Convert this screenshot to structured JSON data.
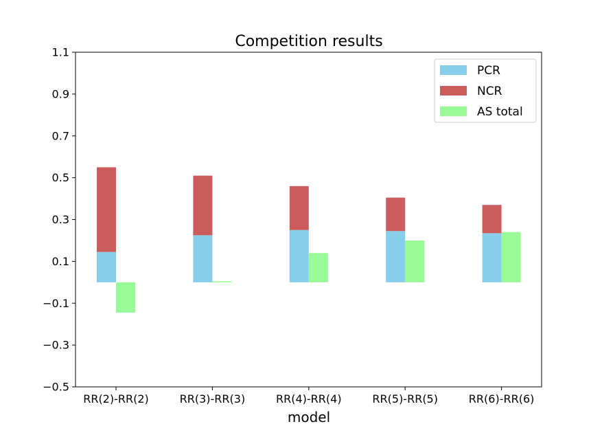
{
  "chart_data": {
    "type": "bar",
    "title": "Competition results",
    "xlabel": "model",
    "ylabel": "",
    "categories": [
      "RR(2)-RR(2)",
      "RR(3)-RR(3)",
      "RR(4)-RR(4)",
      "RR(5)-RR(5)",
      "RR(6)-RR(6)"
    ],
    "ylim": [
      -0.5,
      1.1
    ],
    "yticks": [
      -0.5,
      -0.3,
      -0.1,
      0.1,
      0.3,
      0.5,
      0.7,
      0.9,
      1.1
    ],
    "ytick_labels": [
      "−0.5",
      "−0.3",
      "−0.1",
      "0.1",
      "0.3",
      "0.5",
      "0.7",
      "0.9",
      "1.1"
    ],
    "stacked": true,
    "grid": false,
    "legend_position": "top-right",
    "series": [
      {
        "name": "PCR",
        "color": "#87ceeb",
        "values": [
          0.145,
          0.225,
          0.25,
          0.245,
          0.235
        ],
        "stack": "left"
      },
      {
        "name": "NCR",
        "color": "#cd5c5c",
        "values": [
          0.405,
          0.285,
          0.21,
          0.16,
          0.135
        ],
        "stack": "left"
      },
      {
        "name": "AS total",
        "color": "#98fb98",
        "values": [
          -0.145,
          0.005,
          0.14,
          0.2,
          0.24
        ],
        "stack": "right"
      }
    ]
  }
}
